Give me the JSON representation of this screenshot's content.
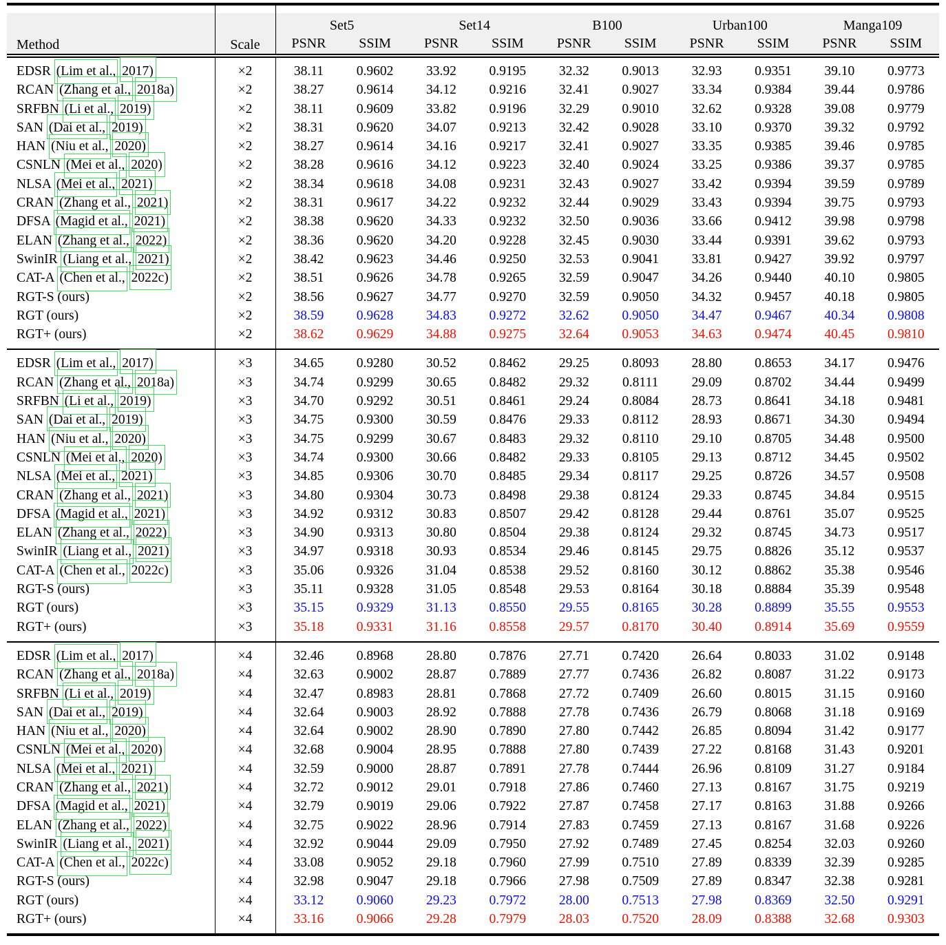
{
  "table": {
    "header": {
      "method_label": "Method",
      "scale_label": "Scale",
      "datasets": [
        "Set5",
        "Set14",
        "B100",
        "Urban100",
        "Manga109"
      ],
      "psnr_label": "PSNR",
      "ssim_label": "SSIM"
    },
    "colors": {
      "best_red": "#f01000",
      "second_blue": "#0d0deb",
      "annotation_green": "#3fdf5c",
      "header_background": "#f0f0f0"
    },
    "blocks": [
      {
        "scale": "×2",
        "rows": [
          {
            "method": "EDSR",
            "cite": "(Lim et al.,",
            "year": "2017)",
            "color": "black",
            "values": [
              "38.11",
              "0.9602",
              "33.92",
              "0.9195",
              "32.32",
              "0.9013",
              "32.93",
              "0.9351",
              "39.10",
              "0.9773"
            ]
          },
          {
            "method": "RCAN",
            "cite": "(Zhang et al.,",
            "year": "2018a)",
            "color": "black",
            "values": [
              "38.27",
              "0.9614",
              "34.12",
              "0.9216",
              "32.41",
              "0.9027",
              "33.34",
              "0.9384",
              "39.44",
              "0.9786"
            ]
          },
          {
            "method": "SRFBN",
            "cite": "(Li et al.,",
            "year": "2019)",
            "color": "black",
            "values": [
              "38.11",
              "0.9609",
              "33.82",
              "0.9196",
              "32.29",
              "0.9010",
              "32.62",
              "0.9328",
              "39.08",
              "0.9779"
            ]
          },
          {
            "method": "SAN",
            "cite": "(Dai et al.,",
            "year": "2019)",
            "color": "black",
            "values": [
              "38.31",
              "0.9620",
              "34.07",
              "0.9213",
              "32.42",
              "0.9028",
              "33.10",
              "0.9370",
              "39.32",
              "0.9792"
            ]
          },
          {
            "method": "HAN",
            "cite": "(Niu et al.,",
            "year": "2020)",
            "color": "black",
            "values": [
              "38.27",
              "0.9614",
              "34.16",
              "0.9217",
              "32.41",
              "0.9027",
              "33.35",
              "0.9385",
              "39.46",
              "0.9785"
            ]
          },
          {
            "method": "CSNLN",
            "cite": "(Mei et al.,",
            "year": "2020)",
            "color": "black",
            "values": [
              "38.28",
              "0.9616",
              "34.12",
              "0.9223",
              "32.40",
              "0.9024",
              "33.25",
              "0.9386",
              "39.37",
              "0.9785"
            ]
          },
          {
            "method": "NLSA",
            "cite": "(Mei et al.,",
            "year": "2021)",
            "color": "black",
            "values": [
              "38.34",
              "0.9618",
              "34.08",
              "0.9231",
              "32.43",
              "0.9027",
              "33.42",
              "0.9394",
              "39.59",
              "0.9789"
            ]
          },
          {
            "method": "CRAN",
            "cite": "(Zhang et al.,",
            "year": "2021)",
            "color": "black",
            "values": [
              "38.31",
              "0.9617",
              "34.22",
              "0.9232",
              "32.44",
              "0.9029",
              "33.43",
              "0.9394",
              "39.75",
              "0.9793"
            ]
          },
          {
            "method": "DFSA",
            "cite": "(Magid et al.,",
            "year": "2021)",
            "color": "black",
            "values": [
              "38.38",
              "0.9620",
              "34.33",
              "0.9232",
              "32.50",
              "0.9036",
              "33.66",
              "0.9412",
              "39.98",
              "0.9798"
            ]
          },
          {
            "method": "ELAN",
            "cite": "(Zhang et al.,",
            "year": "2022)",
            "color": "black",
            "values": [
              "38.36",
              "0.9620",
              "34.20",
              "0.9228",
              "32.45",
              "0.9030",
              "33.44",
              "0.9391",
              "39.62",
              "0.9793"
            ]
          },
          {
            "method": "SwinIR",
            "cite": "(Liang et al.,",
            "year": "2021)",
            "color": "black",
            "values": [
              "38.42",
              "0.9623",
              "34.46",
              "0.9250",
              "32.53",
              "0.9041",
              "33.81",
              "0.9427",
              "39.92",
              "0.9797"
            ]
          },
          {
            "method": "CAT-A",
            "cite": "(Chen et al.,",
            "year": "2022c)",
            "color": "black",
            "values": [
              "38.51",
              "0.9626",
              "34.78",
              "0.9265",
              "32.59",
              "0.9047",
              "34.26",
              "0.9440",
              "40.10",
              "0.9805"
            ]
          },
          {
            "method": "RGT-S (ours)",
            "cite": "",
            "year": "",
            "color": "black",
            "values": [
              "38.56",
              "0.9627",
              "34.77",
              "0.9270",
              "32.59",
              "0.9050",
              "34.32",
              "0.9457",
              "40.18",
              "0.9805"
            ]
          },
          {
            "method": "RGT (ours)",
            "cite": "",
            "year": "",
            "color": "blue",
            "values": [
              "38.59",
              "0.9628",
              "34.83",
              "0.9272",
              "32.62",
              "0.9050",
              "34.47",
              "0.9467",
              "40.34",
              "0.9808"
            ]
          },
          {
            "method": "RGT+ (ours)",
            "cite": "",
            "year": "",
            "color": "red",
            "values": [
              "38.62",
              "0.9629",
              "34.88",
              "0.9275",
              "32.64",
              "0.9053",
              "34.63",
              "0.9474",
              "40.45",
              "0.9810"
            ]
          }
        ]
      },
      {
        "scale": "×3",
        "rows": [
          {
            "method": "EDSR",
            "cite": "(Lim et al.,",
            "year": "2017)",
            "color": "black",
            "values": [
              "34.65",
              "0.9280",
              "30.52",
              "0.8462",
              "29.25",
              "0.8093",
              "28.80",
              "0.8653",
              "34.17",
              "0.9476"
            ]
          },
          {
            "method": "RCAN",
            "cite": "(Zhang et al.,",
            "year": "2018a)",
            "color": "black",
            "values": [
              "34.74",
              "0.9299",
              "30.65",
              "0.8482",
              "29.32",
              "0.8111",
              "29.09",
              "0.8702",
              "34.44",
              "0.9499"
            ]
          },
          {
            "method": "SRFBN",
            "cite": "(Li et al.,",
            "year": "2019)",
            "color": "black",
            "values": [
              "34.70",
              "0.9292",
              "30.51",
              "0.8461",
              "29.24",
              "0.8084",
              "28.73",
              "0.8641",
              "34.18",
              "0.9481"
            ]
          },
          {
            "method": "SAN",
            "cite": "(Dai et al.,",
            "year": "2019)",
            "color": "black",
            "values": [
              "34.75",
              "0.9300",
              "30.59",
              "0.8476",
              "29.33",
              "0.8112",
              "28.93",
              "0.8671",
              "34.30",
              "0.9494"
            ]
          },
          {
            "method": "HAN",
            "cite": "(Niu et al.,",
            "year": "2020)",
            "color": "black",
            "values": [
              "34.75",
              "0.9299",
              "30.67",
              "0.8483",
              "29.32",
              "0.8110",
              "29.10",
              "0.8705",
              "34.48",
              "0.9500"
            ]
          },
          {
            "method": "CSNLN",
            "cite": "(Mei et al.,",
            "year": "2020)",
            "color": "black",
            "values": [
              "34.74",
              "0.9300",
              "30.66",
              "0.8482",
              "29.33",
              "0.8105",
              "29.13",
              "0.8712",
              "34.45",
              "0.9502"
            ]
          },
          {
            "method": "NLSA",
            "cite": "(Mei et al.,",
            "year": "2021)",
            "color": "black",
            "values": [
              "34.85",
              "0.9306",
              "30.70",
              "0.8485",
              "29.34",
              "0.8117",
              "29.25",
              "0.8726",
              "34.57",
              "0.9508"
            ]
          },
          {
            "method": "CRAN",
            "cite": "(Zhang et al.,",
            "year": "2021)",
            "color": "black",
            "values": [
              "34.80",
              "0.9304",
              "30.73",
              "0.8498",
              "29.38",
              "0.8124",
              "29.33",
              "0.8745",
              "34.84",
              "0.9515"
            ]
          },
          {
            "method": "DFSA",
            "cite": "(Magid et al.,",
            "year": "2021)",
            "color": "black",
            "values": [
              "34.92",
              "0.9312",
              "30.83",
              "0.8507",
              "29.42",
              "0.8128",
              "29.44",
              "0.8761",
              "35.07",
              "0.9525"
            ]
          },
          {
            "method": "ELAN",
            "cite": "(Zhang et al.,",
            "year": "2022)",
            "color": "black",
            "values": [
              "34.90",
              "0.9313",
              "30.80",
              "0.8504",
              "29.38",
              "0.8124",
              "29.32",
              "0.8745",
              "34.73",
              "0.9517"
            ]
          },
          {
            "method": "SwinIR",
            "cite": "(Liang et al.,",
            "year": "2021)",
            "color": "black",
            "values": [
              "34.97",
              "0.9318",
              "30.93",
              "0.8534",
              "29.46",
              "0.8145",
              "29.75",
              "0.8826",
              "35.12",
              "0.9537"
            ]
          },
          {
            "method": "CAT-A",
            "cite": "(Chen et al.,",
            "year": "2022c)",
            "color": "black",
            "values": [
              "35.06",
              "0.9326",
              "31.04",
              "0.8538",
              "29.52",
              "0.8160",
              "30.12",
              "0.8862",
              "35.38",
              "0.9546"
            ]
          },
          {
            "method": "RGT-S (ours)",
            "cite": "",
            "year": "",
            "color": "black",
            "values": [
              "35.11",
              "0.9328",
              "31.05",
              "0.8548",
              "29.53",
              "0.8164",
              "30.18",
              "0.8884",
              "35.39",
              "0.9548"
            ]
          },
          {
            "method": "RGT (ours)",
            "cite": "",
            "year": "",
            "color": "blue",
            "values": [
              "35.15",
              "0.9329",
              "31.13",
              "0.8550",
              "29.55",
              "0.8165",
              "30.28",
              "0.8899",
              "35.55",
              "0.9553"
            ]
          },
          {
            "method": "RGT+ (ours)",
            "cite": "",
            "year": "",
            "color": "red",
            "values": [
              "35.18",
              "0.9331",
              "31.16",
              "0.8558",
              "29.57",
              "0.8170",
              "30.40",
              "0.8914",
              "35.69",
              "0.9559"
            ]
          }
        ]
      },
      {
        "scale": "×4",
        "rows": [
          {
            "method": "EDSR",
            "cite": "(Lim et al.,",
            "year": "2017)",
            "color": "black",
            "values": [
              "32.46",
              "0.8968",
              "28.80",
              "0.7876",
              "27.71",
              "0.7420",
              "26.64",
              "0.8033",
              "31.02",
              "0.9148"
            ]
          },
          {
            "method": "RCAN",
            "cite": "(Zhang et al.,",
            "year": "2018a)",
            "color": "black",
            "values": [
              "32.63",
              "0.9002",
              "28.87",
              "0.7889",
              "27.77",
              "0.7436",
              "26.82",
              "0.8087",
              "31.22",
              "0.9173"
            ]
          },
          {
            "method": "SRFBN",
            "cite": "(Li et al.,",
            "year": "2019)",
            "color": "black",
            "values": [
              "32.47",
              "0.8983",
              "28.81",
              "0.7868",
              "27.72",
              "0.7409",
              "26.60",
              "0.8015",
              "31.15",
              "0.9160"
            ]
          },
          {
            "method": "SAN",
            "cite": "(Dai et al.,",
            "year": "2019)",
            "color": "black",
            "values": [
              "32.64",
              "0.9003",
              "28.92",
              "0.7888",
              "27.78",
              "0.7436",
              "26.79",
              "0.8068",
              "31.18",
              "0.9169"
            ]
          },
          {
            "method": "HAN",
            "cite": "(Niu et al.,",
            "year": "2020)",
            "color": "black",
            "values": [
              "32.64",
              "0.9002",
              "28.90",
              "0.7890",
              "27.80",
              "0.7442",
              "26.85",
              "0.8094",
              "31.42",
              "0.9177"
            ]
          },
          {
            "method": "CSNLN",
            "cite": "(Mei et al.,",
            "year": "2020)",
            "color": "black",
            "values": [
              "32.68",
              "0.9004",
              "28.95",
              "0.7888",
              "27.80",
              "0.7439",
              "27.22",
              "0.8168",
              "31.43",
              "0.9201"
            ]
          },
          {
            "method": "NLSA",
            "cite": "(Mei et al.,",
            "year": "2021)",
            "color": "black",
            "values": [
              "32.59",
              "0.9000",
              "28.87",
              "0.7891",
              "27.78",
              "0.7444",
              "26.96",
              "0.8109",
              "31.27",
              "0.9184"
            ]
          },
          {
            "method": "CRAN",
            "cite": "(Zhang et al.,",
            "year": "2021)",
            "color": "black",
            "values": [
              "32.72",
              "0.9012",
              "29.01",
              "0.7918",
              "27.86",
              "0.7460",
              "27.13",
              "0.8167",
              "31.75",
              "0.9219"
            ]
          },
          {
            "method": "DFSA",
            "cite": "(Magid et al.,",
            "year": "2021)",
            "color": "black",
            "values": [
              "32.79",
              "0.9019",
              "29.06",
              "0.7922",
              "27.87",
              "0.7458",
              "27.17",
              "0.8163",
              "31.88",
              "0.9266"
            ]
          },
          {
            "method": "ELAN",
            "cite": "(Zhang et al.,",
            "year": "2022)",
            "color": "black",
            "values": [
              "32.75",
              "0.9022",
              "28.96",
              "0.7914",
              "27.83",
              "0.7459",
              "27.13",
              "0.8167",
              "31.68",
              "0.9226"
            ]
          },
          {
            "method": "SwinIR",
            "cite": "(Liang et al.,",
            "year": "2021)",
            "color": "black",
            "values": [
              "32.92",
              "0.9044",
              "29.09",
              "0.7950",
              "27.92",
              "0.7489",
              "27.45",
              "0.8254",
              "32.03",
              "0.9260"
            ]
          },
          {
            "method": "CAT-A",
            "cite": "(Chen et al.,",
            "year": "2022c)",
            "color": "black",
            "values": [
              "33.08",
              "0.9052",
              "29.18",
              "0.7960",
              "27.99",
              "0.7510",
              "27.89",
              "0.8339",
              "32.39",
              "0.9285"
            ]
          },
          {
            "method": "RGT-S (ours)",
            "cite": "",
            "year": "",
            "color": "black",
            "values": [
              "32.98",
              "0.9047",
              "29.18",
              "0.7966",
              "27.98",
              "0.7509",
              "27.89",
              "0.8347",
              "32.38",
              "0.9281"
            ]
          },
          {
            "method": "RGT (ours)",
            "cite": "",
            "year": "",
            "color": "blue",
            "values": [
              "33.12",
              "0.9060",
              "29.23",
              "0.7972",
              "28.00",
              "0.7513",
              "27.98",
              "0.8369",
              "32.50",
              "0.9291"
            ]
          },
          {
            "method": "RGT+ (ours)",
            "cite": "",
            "year": "",
            "color": "red",
            "values": [
              "33.16",
              "0.9066",
              "29.28",
              "0.7979",
              "28.03",
              "0.7520",
              "28.09",
              "0.8388",
              "32.68",
              "0.9303"
            ]
          }
        ]
      }
    ]
  }
}
